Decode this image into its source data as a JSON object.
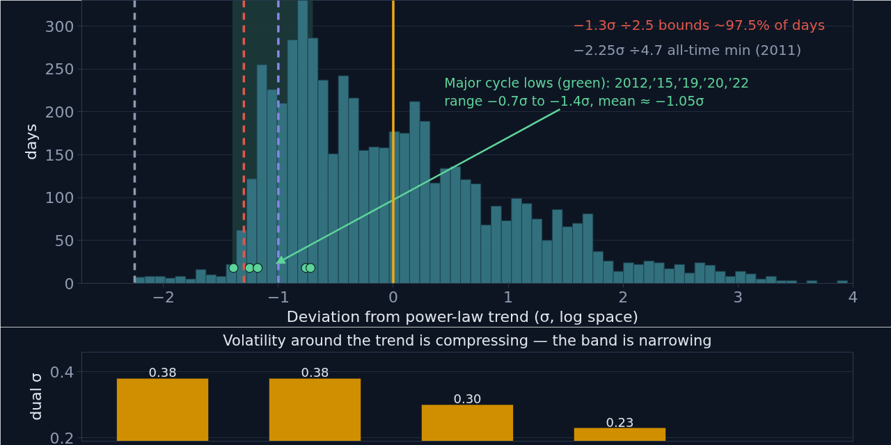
{
  "chart_data": [
    {
      "type": "histogram",
      "xlabel": "Deviation from power-law trend   (σ, log space)",
      "ylabel": "days",
      "bins": [
        -2.25,
        -2.161,
        -2.073,
        -1.984,
        -1.896,
        -1.807,
        -1.718,
        -1.63,
        -1.541,
        -1.453,
        -1.364,
        -1.275,
        -1.187,
        -1.098,
        -1.01,
        -0.921,
        -0.832,
        -0.744,
        -0.655,
        -0.567,
        -0.478,
        -0.389,
        -0.301,
        -0.212,
        -0.124,
        -0.035,
        0.054,
        0.142,
        0.231,
        0.319,
        0.408,
        0.497,
        0.585,
        0.674,
        0.762,
        0.851,
        0.94,
        1.028,
        1.117,
        1.205,
        1.294,
        1.383,
        1.471,
        1.56,
        1.648,
        1.737,
        1.826,
        1.914,
        2.003,
        2.091,
        2.18,
        2.269,
        2.357,
        2.446,
        2.534,
        2.623,
        2.712,
        2.8,
        2.889,
        2.977,
        3.066,
        3.155,
        3.243,
        3.332,
        3.42,
        3.509,
        3.598,
        3.686,
        3.775,
        3.863,
        3.952
      ],
      "values": [
        7,
        8,
        8,
        6,
        8,
        5,
        16,
        10,
        8,
        22,
        62,
        122,
        255,
        226,
        210,
        284,
        330,
        286,
        237,
        151,
        242,
        216,
        155,
        159,
        158,
        177,
        175,
        212,
        189,
        117,
        134,
        136,
        121,
        116,
        68,
        90,
        73,
        99,
        93,
        75,
        50,
        86,
        66,
        70,
        81,
        37,
        26,
        14,
        24,
        22,
        26,
        24,
        17,
        22,
        12,
        24,
        21,
        14,
        8,
        14,
        11,
        5,
        8,
        3,
        3,
        0,
        3,
        0,
        0,
        3
      ],
      "color": "#357583",
      "series": [
        {
          "type": "scatter",
          "x": [
            -1.39,
            -1.25,
            -1.18,
            -0.76,
            -0.72
          ],
          "values": [
            18,
            18,
            18,
            18,
            18
          ],
          "color": "#5ed39b"
        }
      ],
      "marker": "circle",
      "xlim": [
        -2.71,
        4.0
      ],
      "xticks": [
        {
          "value": -2,
          "label": "−2"
        },
        {
          "value": -1,
          "label": "−1"
        },
        0,
        1,
        2,
        3,
        4
      ],
      "ylim": [
        0,
        330
      ],
      "yticks": [
        0,
        50,
        100,
        150,
        200,
        250,
        300
      ],
      "grid": "y",
      "ref_lines": [
        {
          "axis": "x",
          "value": -1.3,
          "label": "−1.3σ   ÷2.5   bounds ~97.5% of days",
          "color": "#e0574c",
          "line_style": "dashed"
        },
        {
          "axis": "x",
          "value": -2.25,
          "label": "−2.25σ  ÷4.7   all-time min (2011)",
          "color": "#8d9bb0",
          "line_style": "dashed"
        },
        {
          "axis": "x",
          "value": -1.0,
          "color": "#8c86ea",
          "line_style": "dashed"
        },
        {
          "axis": "x",
          "value": 0,
          "color": "#f0a818",
          "line_style": "solid"
        }
      ],
      "bands": [
        {
          "axis": "x",
          "from": -1.4,
          "to": -0.7,
          "color": "#1c3a3a"
        }
      ],
      "annotations": [
        {
          "text": "Major cycle lows (green): 2012,’15,’19,’20,’22\nrange −0.7σ to −1.4σ,  mean ≈ −1.05σ",
          "x": -1.02,
          "y": 23
        }
      ]
    },
    {
      "type": "bar",
      "title": "Volatility around the trend is compressing — the band is narrowing",
      "ylabel": "dual σ",
      "categories": [
        null,
        null,
        null,
        null,
        null
      ],
      "values": [
        0.38,
        0.38,
        0.3,
        0.23,
        null
      ],
      "value_labels": [
        "0.38",
        "0.38",
        "0.30",
        "0.23",
        null
      ],
      "color": "#d08f00",
      "ylim": [
        0.19,
        0.46
      ],
      "yticks": [
        0.2,
        0.4
      ],
      "grid": "y",
      "tick_labels": "y"
    }
  ]
}
